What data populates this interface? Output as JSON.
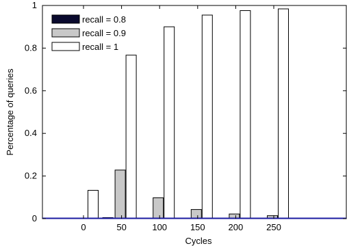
{
  "chart_data": {
    "type": "bar",
    "title": "",
    "xlabel": "Cycles",
    "ylabel": "Percentage of queries",
    "categories": [
      "0",
      "50",
      "100",
      "150",
      "200",
      "250"
    ],
    "x_ticks": [
      "0",
      "50",
      "100",
      "150",
      "200",
      "250"
    ],
    "y_ticks": [
      "0",
      "0.2",
      "0.4",
      "0.6",
      "0.8",
      "1"
    ],
    "ylim": [
      0,
      1
    ],
    "grid": false,
    "legend_position": "top-left",
    "series": [
      {
        "name": "recall = 0.8",
        "color": "#0a0a2e",
        "values": [
          0.003,
          0.005,
          0.002,
          0.002,
          0.002,
          0.002
        ]
      },
      {
        "name": "recall = 0.9",
        "color": "#c8c8c8",
        "values": [
          0.0,
          0.228,
          0.098,
          0.043,
          0.022,
          0.014
        ]
      },
      {
        "name": "recall = 1",
        "color": "#ffffff",
        "values": [
          0.133,
          0.767,
          0.9,
          0.955,
          0.976,
          0.984
        ]
      }
    ]
  }
}
